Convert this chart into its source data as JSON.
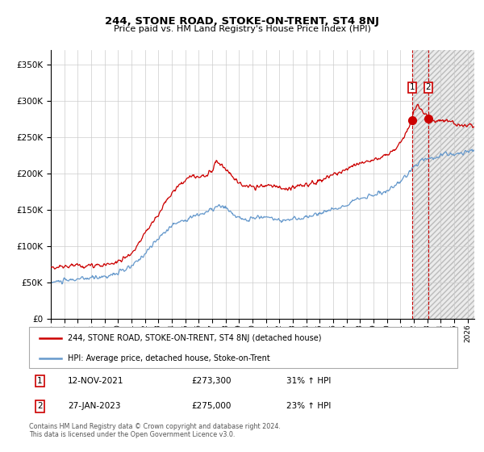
{
  "title": "244, STONE ROAD, STOKE-ON-TRENT, ST4 8NJ",
  "subtitle": "Price paid vs. HM Land Registry's House Price Index (HPI)",
  "legend_label_red": "244, STONE ROAD, STOKE-ON-TRENT, ST4 8NJ (detached house)",
  "legend_label_blue": "HPI: Average price, detached house, Stoke-on-Trent",
  "transaction1_date": "12-NOV-2021",
  "transaction1_price": 273300,
  "transaction1_hpi": "31% ↑ HPI",
  "transaction2_date": "27-JAN-2023",
  "transaction2_price": 275000,
  "transaction2_hpi": "23% ↑ HPI",
  "transaction1_year": 2021.87,
  "transaction2_year": 2023.08,
  "footer": "Contains HM Land Registry data © Crown copyright and database right 2024.\nThis data is licensed under the Open Government Licence v3.0.",
  "ylim": [
    0,
    370000
  ],
  "xlim_start": 1995.0,
  "xlim_end": 2026.5,
  "yticks": [
    0,
    50000,
    100000,
    150000,
    200000,
    250000,
    300000,
    350000
  ],
  "xticks": [
    1995,
    1996,
    1997,
    1998,
    1999,
    2000,
    2001,
    2002,
    2003,
    2004,
    2005,
    2006,
    2007,
    2008,
    2009,
    2010,
    2011,
    2012,
    2013,
    2014,
    2015,
    2016,
    2017,
    2018,
    2019,
    2020,
    2021,
    2022,
    2023,
    2024,
    2025,
    2026
  ],
  "red_color": "#cc0000",
  "blue_color": "#6699cc",
  "vline_color": "#cc0000",
  "hatch_start": 2021.87,
  "hatch_end": 2026.5,
  "marker_size": 7
}
